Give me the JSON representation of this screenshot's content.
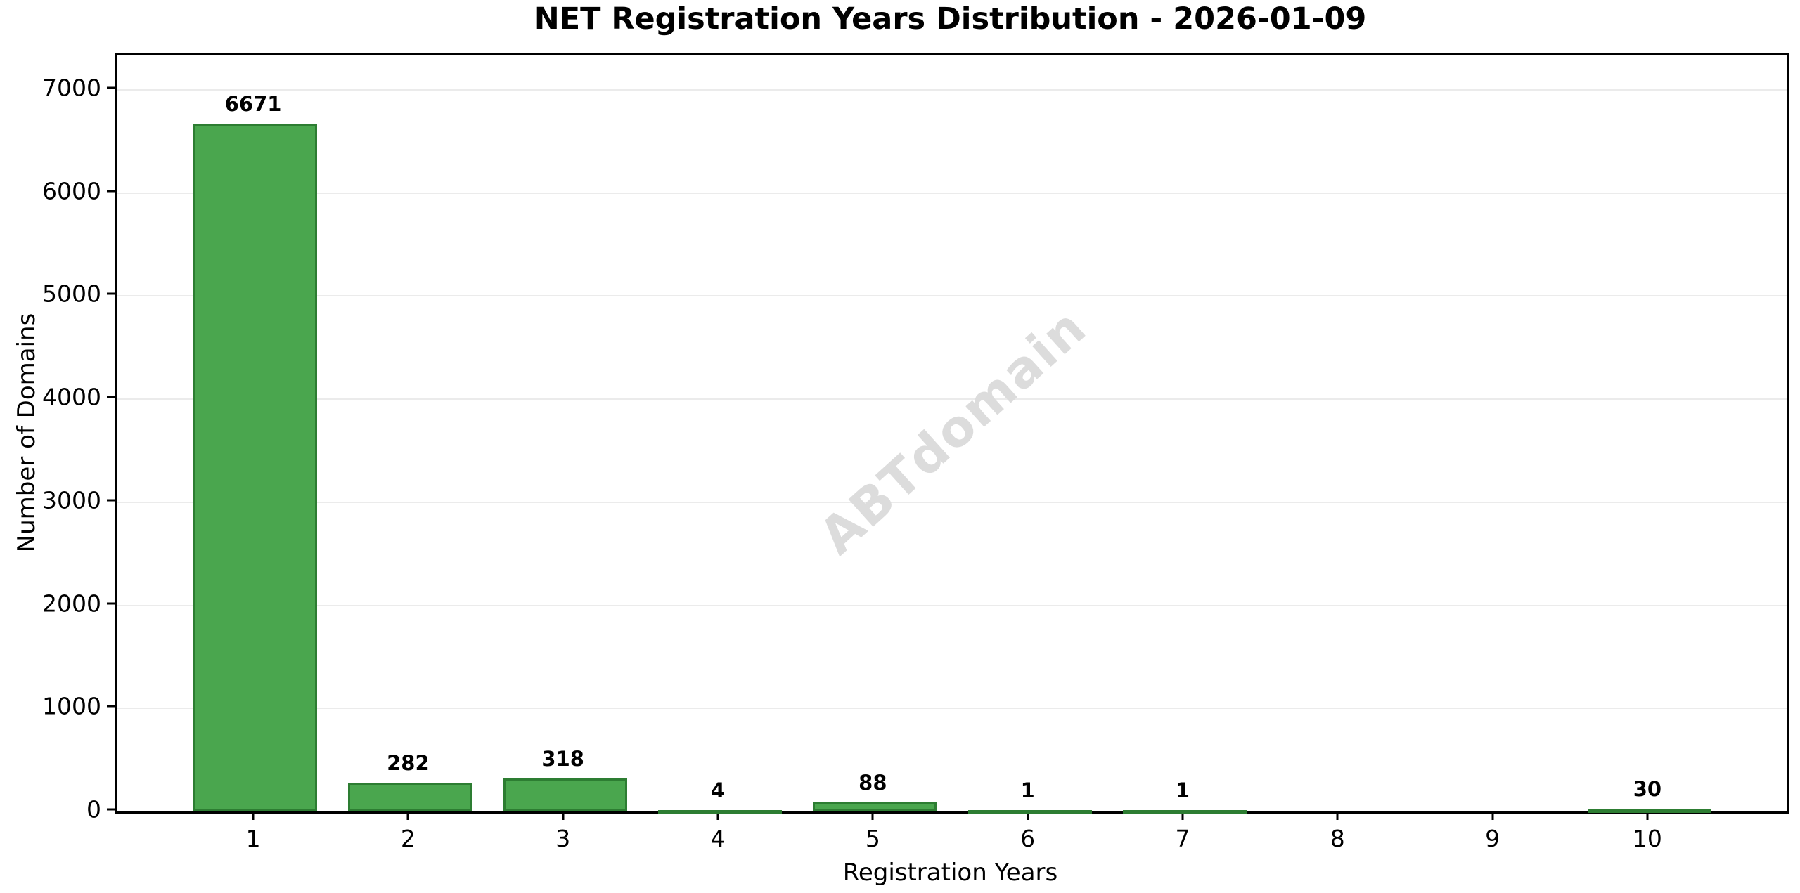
{
  "title": "NET Registration Years Distribution - 2026-01-09",
  "watermark": "ABTdomain",
  "colors": {
    "background": "#ffffff",
    "bar_fill": "#4aa64e",
    "bar_edge": "#2d7d32",
    "gridline": "#ebebeb",
    "axis": "#000000",
    "text": "#000000",
    "watermark": "#dcdcdc"
  },
  "chart_data": {
    "type": "bar",
    "title": "NET Registration Years Distribution - 2026-01-09",
    "xlabel": "Registration Years",
    "ylabel": "Number of Domains",
    "categories": [
      1,
      2,
      3,
      4,
      5,
      6,
      7,
      8,
      9,
      10
    ],
    "values": [
      6671,
      282,
      318,
      4,
      88,
      1,
      1,
      0,
      0,
      30
    ],
    "bar_labels": [
      "6671",
      "282",
      "318",
      "4",
      "88",
      "1",
      "1",
      "",
      "",
      "30"
    ],
    "yticks": [
      0,
      1000,
      2000,
      3000,
      4000,
      5000,
      6000,
      7000
    ],
    "ylim": [
      0,
      7340
    ],
    "xlim": [
      0.11,
      10.89
    ],
    "bar_width": 0.8,
    "grid": "horizontal-light",
    "legend": "none",
    "annotations": "value shown above each bar with data"
  }
}
